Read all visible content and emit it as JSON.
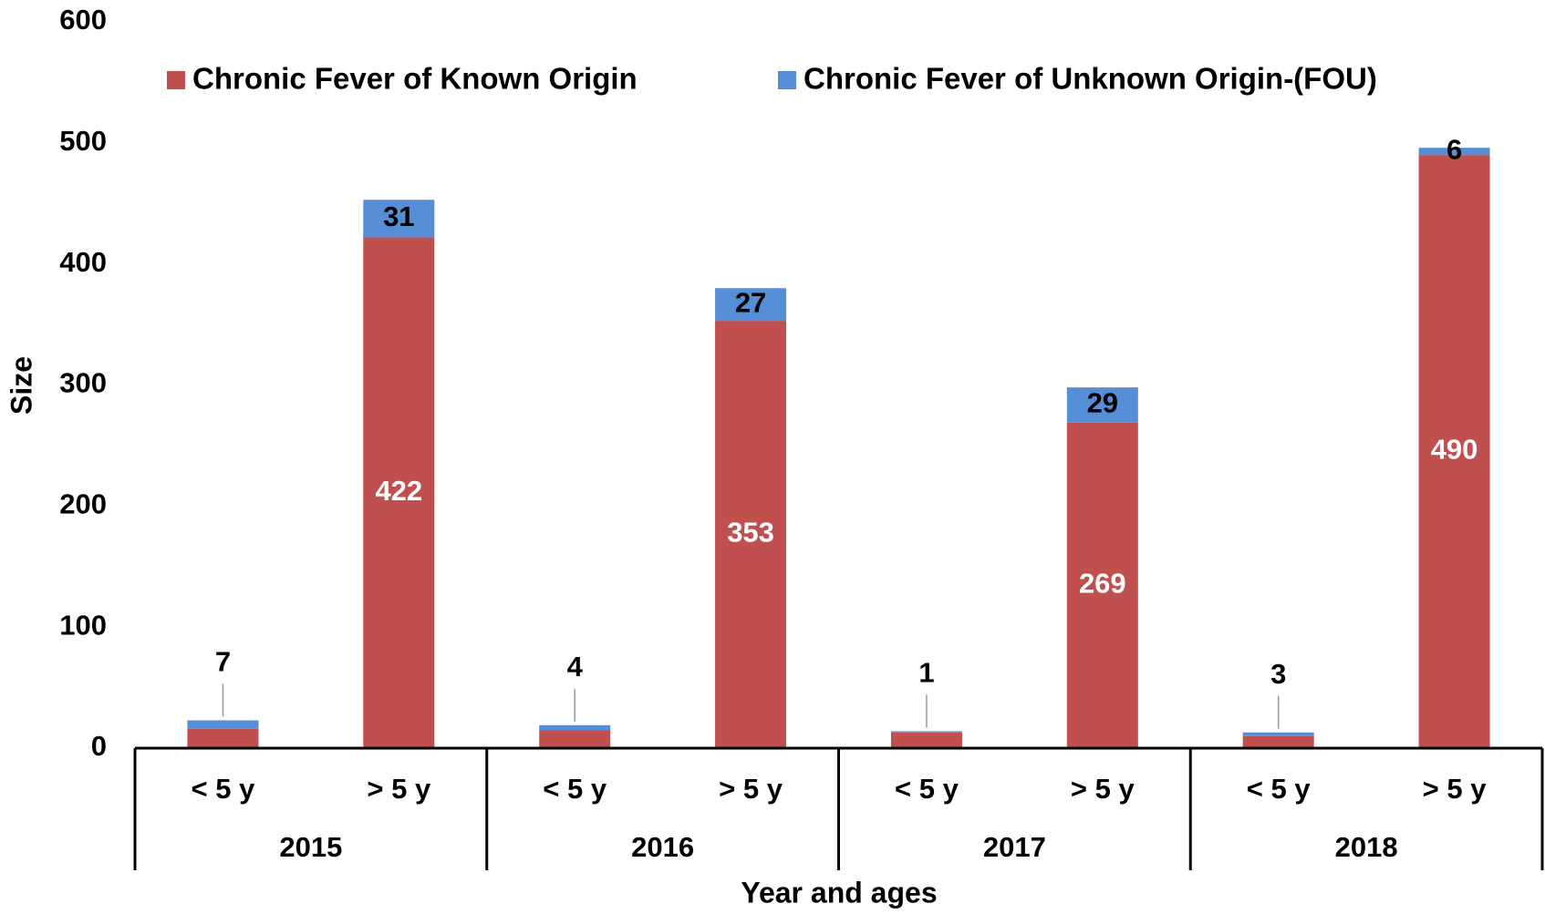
{
  "chart_data": {
    "type": "stacked_bar",
    "y_label": "Size",
    "x_label": "Year and ages",
    "categories": [
      "< 5 y",
      "> 5 y",
      "< 5 y",
      "> 5 y",
      "< 5 y",
      "> 5 y",
      "< 5 y",
      "> 5 y"
    ],
    "groups": [
      "2015",
      "2016",
      "2017",
      "2018"
    ],
    "series": [
      {
        "name": "Chronic Fever of Known Origin",
        "color": "#c0504d",
        "values": [
          16,
          422,
          15,
          353,
          13,
          269,
          10,
          490
        ],
        "value_labels": [
          null,
          "422",
          null,
          "353",
          null,
          "269",
          null,
          "490"
        ]
      },
      {
        "name": "Chronic Fever of Unknown Origin-(FOU)",
        "color": "#558ed5",
        "values": [
          7,
          31,
          4,
          27,
          1,
          29,
          3,
          6
        ]
      }
    ],
    "ylim": [
      0,
      600
    ],
    "yticks": [
      0,
      100,
      200,
      300,
      400,
      500,
      600
    ],
    "grid": false,
    "legend": "top"
  }
}
